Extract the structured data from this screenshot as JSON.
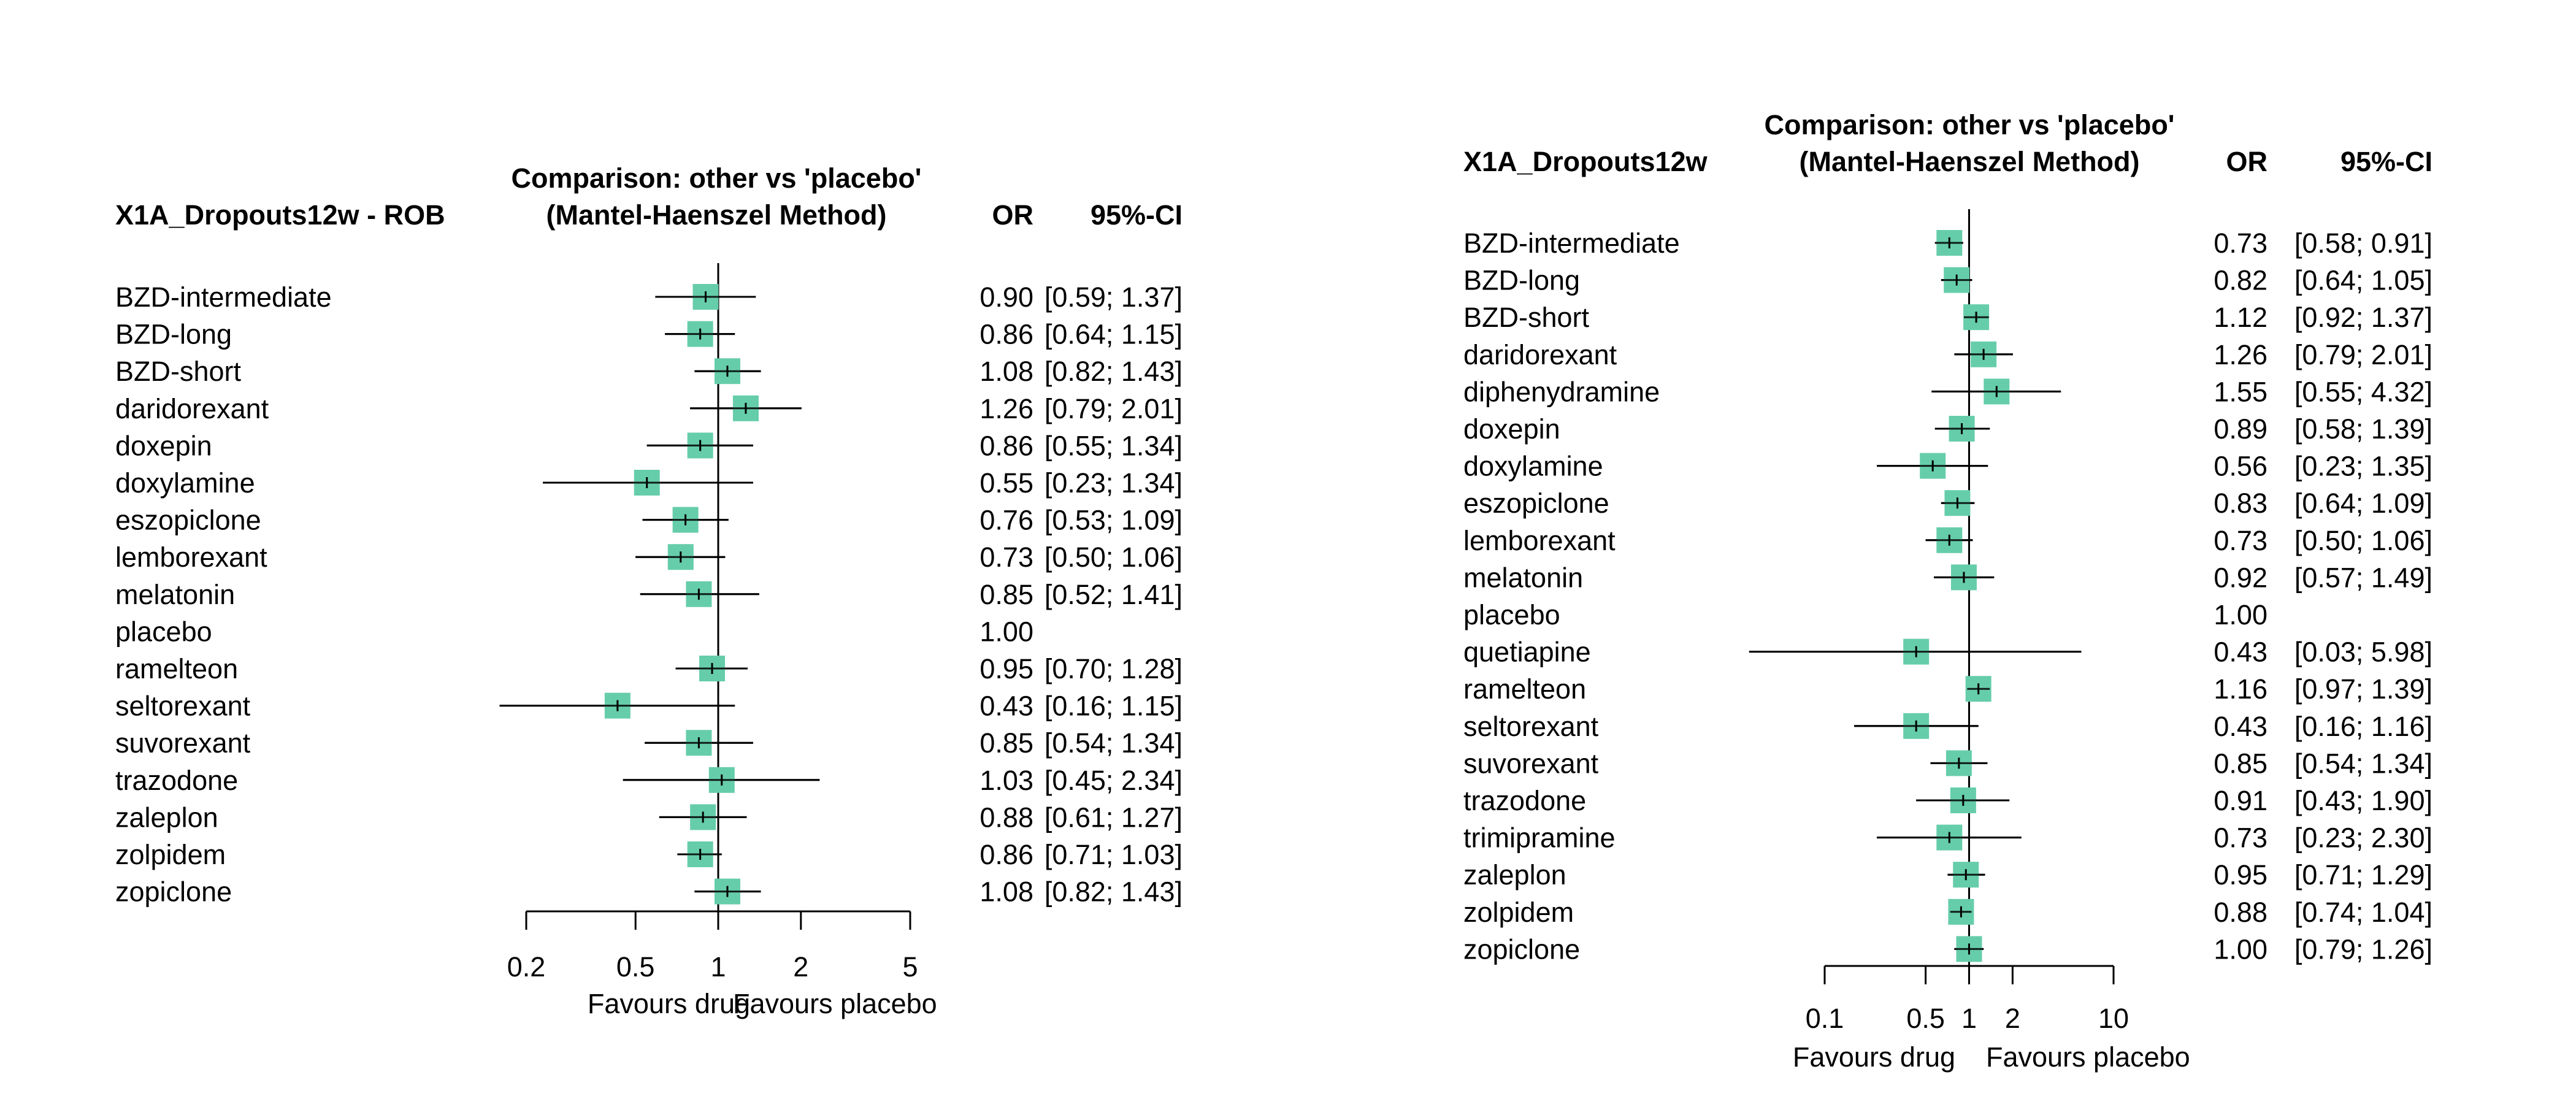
{
  "colors": {
    "marker": "#66cdaa",
    "line": "#000000",
    "background": "#ffffff"
  },
  "chart_data": [
    {
      "type": "forest",
      "scale": "log",
      "measure": "OR",
      "reference_value": 1,
      "header_left": "X1A_Dropouts12w - ROB",
      "header_comparison_line1": "Comparison: other vs 'placebo'",
      "header_comparison_line2": "(Mantel-Haenszel Method)",
      "header_or": "OR",
      "header_ci": "95%-CI",
      "axis_ticks": [
        0.2,
        0.5,
        1,
        2,
        5
      ],
      "axis_tick_labels": [
        "0.2",
        "0.5",
        "1",
        "2",
        "5"
      ],
      "xlim": [
        0.2,
        5
      ],
      "favours_left": "Favours drug",
      "favours_right": "Favours placebo",
      "rows": [
        {
          "name": "BZD-intermediate",
          "or": 0.9,
          "lo": 0.59,
          "hi": 1.37,
          "or_text": "0.90",
          "ci_text": "[0.59; 1.37]"
        },
        {
          "name": "BZD-long",
          "or": 0.86,
          "lo": 0.64,
          "hi": 1.15,
          "or_text": "0.86",
          "ci_text": "[0.64; 1.15]"
        },
        {
          "name": "BZD-short",
          "or": 1.08,
          "lo": 0.82,
          "hi": 1.43,
          "or_text": "1.08",
          "ci_text": "[0.82; 1.43]"
        },
        {
          "name": "daridorexant",
          "or": 1.26,
          "lo": 0.79,
          "hi": 2.01,
          "or_text": "1.26",
          "ci_text": "[0.79; 2.01]"
        },
        {
          "name": "doxepin",
          "or": 0.86,
          "lo": 0.55,
          "hi": 1.34,
          "or_text": "0.86",
          "ci_text": "[0.55; 1.34]"
        },
        {
          "name": "doxylamine",
          "or": 0.55,
          "lo": 0.23,
          "hi": 1.34,
          "or_text": "0.55",
          "ci_text": "[0.23; 1.34]"
        },
        {
          "name": "eszopiclone",
          "or": 0.76,
          "lo": 0.53,
          "hi": 1.09,
          "or_text": "0.76",
          "ci_text": "[0.53; 1.09]"
        },
        {
          "name": "lemborexant",
          "or": 0.73,
          "lo": 0.5,
          "hi": 1.06,
          "or_text": "0.73",
          "ci_text": "[0.50; 1.06]"
        },
        {
          "name": "melatonin",
          "or": 0.85,
          "lo": 0.52,
          "hi": 1.41,
          "or_text": "0.85",
          "ci_text": "[0.52; 1.41]"
        },
        {
          "name": "placebo",
          "or": 1.0,
          "lo": null,
          "hi": null,
          "or_text": "1.00",
          "ci_text": ""
        },
        {
          "name": "ramelteon",
          "or": 0.95,
          "lo": 0.7,
          "hi": 1.28,
          "or_text": "0.95",
          "ci_text": "[0.70; 1.28]"
        },
        {
          "name": "seltorexant",
          "or": 0.43,
          "lo": 0.16,
          "hi": 1.15,
          "or_text": "0.43",
          "ci_text": "[0.16; 1.15]"
        },
        {
          "name": "suvorexant",
          "or": 0.85,
          "lo": 0.54,
          "hi": 1.34,
          "or_text": "0.85",
          "ci_text": "[0.54; 1.34]"
        },
        {
          "name": "trazodone",
          "or": 1.03,
          "lo": 0.45,
          "hi": 2.34,
          "or_text": "1.03",
          "ci_text": "[0.45; 2.34]"
        },
        {
          "name": "zaleplon",
          "or": 0.88,
          "lo": 0.61,
          "hi": 1.27,
          "or_text": "0.88",
          "ci_text": "[0.61; 1.27]"
        },
        {
          "name": "zolpidem",
          "or": 0.86,
          "lo": 0.71,
          "hi": 1.03,
          "or_text": "0.86",
          "ci_text": "[0.71; 1.03]"
        },
        {
          "name": "zopiclone",
          "or": 1.08,
          "lo": 0.82,
          "hi": 1.43,
          "or_text": "1.08",
          "ci_text": "[0.82; 1.43]"
        }
      ]
    },
    {
      "type": "forest",
      "scale": "log",
      "measure": "OR",
      "reference_value": 1,
      "header_left": "X1A_Dropouts12w",
      "header_comparison_line1": "Comparison: other vs 'placebo'",
      "header_comparison_line2": "(Mantel-Haenszel Method)",
      "header_or": "OR",
      "header_ci": "95%-CI",
      "axis_ticks": [
        0.1,
        0.5,
        1,
        2,
        10
      ],
      "axis_tick_labels": [
        "0.1",
        "0.5",
        "1",
        "2",
        "10"
      ],
      "xlim": [
        0.1,
        10
      ],
      "favours_left": "Favours drug",
      "favours_right": "Favours placebo",
      "rows": [
        {
          "name": "BZD-intermediate",
          "or": 0.73,
          "lo": 0.58,
          "hi": 0.91,
          "or_text": "0.73",
          "ci_text": "[0.58; 0.91]"
        },
        {
          "name": "BZD-long",
          "or": 0.82,
          "lo": 0.64,
          "hi": 1.05,
          "or_text": "0.82",
          "ci_text": "[0.64; 1.05]"
        },
        {
          "name": "BZD-short",
          "or": 1.12,
          "lo": 0.92,
          "hi": 1.37,
          "or_text": "1.12",
          "ci_text": "[0.92; 1.37]"
        },
        {
          "name": "daridorexant",
          "or": 1.26,
          "lo": 0.79,
          "hi": 2.01,
          "or_text": "1.26",
          "ci_text": "[0.79; 2.01]"
        },
        {
          "name": "diphenydramine",
          "or": 1.55,
          "lo": 0.55,
          "hi": 4.32,
          "or_text": "1.55",
          "ci_text": "[0.55; 4.32]"
        },
        {
          "name": "doxepin",
          "or": 0.89,
          "lo": 0.58,
          "hi": 1.39,
          "or_text": "0.89",
          "ci_text": "[0.58; 1.39]"
        },
        {
          "name": "doxylamine",
          "or": 0.56,
          "lo": 0.23,
          "hi": 1.35,
          "or_text": "0.56",
          "ci_text": "[0.23; 1.35]"
        },
        {
          "name": "eszopiclone",
          "or": 0.83,
          "lo": 0.64,
          "hi": 1.09,
          "or_text": "0.83",
          "ci_text": "[0.64; 1.09]"
        },
        {
          "name": "lemborexant",
          "or": 0.73,
          "lo": 0.5,
          "hi": 1.06,
          "or_text": "0.73",
          "ci_text": "[0.50; 1.06]"
        },
        {
          "name": "melatonin",
          "or": 0.92,
          "lo": 0.57,
          "hi": 1.49,
          "or_text": "0.92",
          "ci_text": "[0.57; 1.49]"
        },
        {
          "name": "placebo",
          "or": 1.0,
          "lo": null,
          "hi": null,
          "or_text": "1.00",
          "ci_text": ""
        },
        {
          "name": "quetiapine",
          "or": 0.43,
          "lo": 0.03,
          "hi": 5.98,
          "or_text": "0.43",
          "ci_text": "[0.03; 5.98]"
        },
        {
          "name": "ramelteon",
          "or": 1.16,
          "lo": 0.97,
          "hi": 1.39,
          "or_text": "1.16",
          "ci_text": "[0.97; 1.39]"
        },
        {
          "name": "seltorexant",
          "or": 0.43,
          "lo": 0.16,
          "hi": 1.16,
          "or_text": "0.43",
          "ci_text": "[0.16; 1.16]"
        },
        {
          "name": "suvorexant",
          "or": 0.85,
          "lo": 0.54,
          "hi": 1.34,
          "or_text": "0.85",
          "ci_text": "[0.54; 1.34]"
        },
        {
          "name": "trazodone",
          "or": 0.91,
          "lo": 0.43,
          "hi": 1.9,
          "or_text": "0.91",
          "ci_text": "[0.43; 1.90]"
        },
        {
          "name": "trimipramine",
          "or": 0.73,
          "lo": 0.23,
          "hi": 2.3,
          "or_text": "0.73",
          "ci_text": "[0.23; 2.30]"
        },
        {
          "name": "zaleplon",
          "or": 0.95,
          "lo": 0.71,
          "hi": 1.29,
          "or_text": "0.95",
          "ci_text": "[0.71; 1.29]"
        },
        {
          "name": "zolpidem",
          "or": 0.88,
          "lo": 0.74,
          "hi": 1.04,
          "or_text": "0.88",
          "ci_text": "[0.74; 1.04]"
        },
        {
          "name": "zopiclone",
          "or": 1.0,
          "lo": 0.79,
          "hi": 1.26,
          "or_text": "1.00",
          "ci_text": "[0.79; 1.26]"
        }
      ]
    }
  ]
}
